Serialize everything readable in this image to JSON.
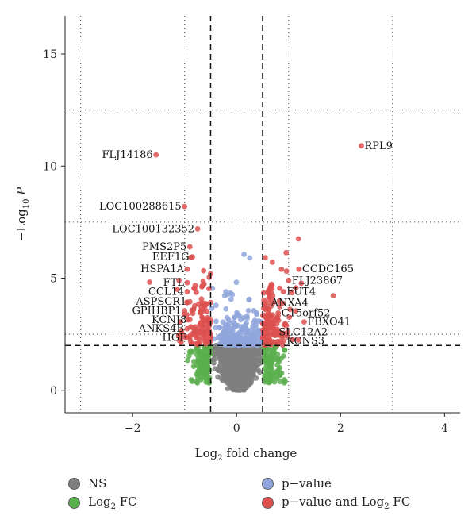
{
  "chart_data": {
    "type": "scatter",
    "title": "",
    "xlabel": "Log2 fold change",
    "ylabel": "−Log10 P",
    "xlim": [
      -3.3,
      4.3
    ],
    "ylim": [
      -1.0,
      16.7
    ],
    "x_ticks": [
      -2,
      0,
      2,
      4
    ],
    "x_tick_labels": [
      "−2",
      "0",
      "2",
      "4"
    ],
    "y_ticks": [
      0,
      5,
      10,
      15
    ],
    "y_tick_labels": [
      "0",
      "5",
      "10",
      "15"
    ],
    "fc_cutoffs": [
      -0.5,
      0.5
    ],
    "p_cutoff": 2.0,
    "grid": "dotted",
    "legend_position": "bottom",
    "colors": {
      "NS": "#7f7f7f",
      "Log2_FC": "#5aaf4e",
      "p_value": "#8fa6dc",
      "p_value_and_Log2_FC": "#dd5050"
    },
    "series": [
      {
        "name": "NS",
        "color_key": "NS"
      },
      {
        "name": "Log2 FC",
        "color_key": "Log2_FC"
      },
      {
        "name": "p−value",
        "color_key": "p_value"
      },
      {
        "name": "p−value and Log2 FC",
        "color_key": "p_value_and_Log2_FC"
      }
    ],
    "labeled_points": [
      {
        "label": "RPL9",
        "x": 2.4,
        "y": 10.9
      },
      {
        "label": "FLJ14186",
        "x": -1.55,
        "y": 10.5
      },
      {
        "label": "LOC100288615",
        "x": -1.0,
        "y": 8.2
      },
      {
        "label": "LOC100132352",
        "x": -0.75,
        "y": 7.2
      },
      {
        "label": "PMS2P5",
        "x": -0.9,
        "y": 6.4
      },
      {
        "label": "EEF1G",
        "x": -0.85,
        "y": 5.95
      },
      {
        "label": "HSPA1A",
        "x": -0.95,
        "y": 5.4
      },
      {
        "label": "FTL",
        "x": -0.95,
        "y": 4.8
      },
      {
        "label": "CCL14",
        "x": -0.95,
        "y": 4.4
      },
      {
        "label": "ASPSCR1",
        "x": -0.9,
        "y": 3.95
      },
      {
        "label": "GPIHBP1",
        "x": -1.0,
        "y": 3.55
      },
      {
        "label": "KCNJ8",
        "x": -0.9,
        "y": 3.15
      },
      {
        "label": "ANKS4B",
        "x": -0.95,
        "y": 2.75
      },
      {
        "label": "HGF",
        "x": -0.9,
        "y": 2.35
      },
      {
        "label": "CCDC165",
        "x": 1.2,
        "y": 5.4
      },
      {
        "label": "FLJ23867",
        "x": 1.0,
        "y": 4.9
      },
      {
        "label": "FUT4",
        "x": 0.9,
        "y": 4.4
      },
      {
        "label": "ANXA4",
        "x": 0.6,
        "y": 3.9
      },
      {
        "label": "C15orf52",
        "x": 0.8,
        "y": 3.45
      },
      {
        "label": "FBXO41",
        "x": 1.3,
        "y": 3.05
      },
      {
        "label": "SLC12A2",
        "x": 0.75,
        "y": 2.6
      },
      {
        "label": "KCNS3",
        "x": 0.9,
        "y": 2.2
      }
    ]
  },
  "legend": {
    "ns": "NS",
    "log2fc_prefix": "Log",
    "log2fc_sub": "2",
    "log2fc_suffix": " FC",
    "pvalue": "p−value",
    "pvalue_and_prefix": "p−value and Log",
    "pvalue_and_sub": "2",
    "pvalue_and_suffix": " FC"
  },
  "axis_titles": {
    "x_prefix": "Log",
    "x_sub": "2",
    "x_suffix": " fold change",
    "y_prefix": "−Log",
    "y_sub": "10",
    "y_suffix": " P"
  }
}
